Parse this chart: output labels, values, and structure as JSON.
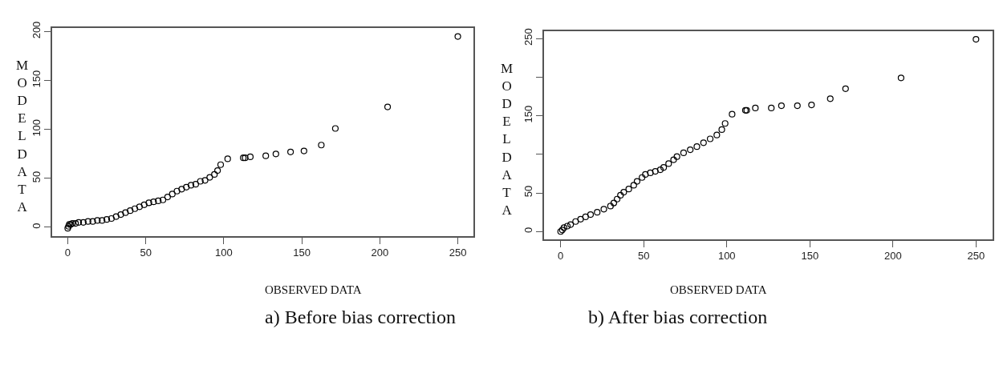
{
  "chart_data": [
    {
      "type": "scatter",
      "title": "a) Before bias correction",
      "xlabel": "OBSERVED DATA",
      "ylabel": "MODEL DATA",
      "color": "#000000",
      "marker": "circle",
      "x": [
        0,
        0.5,
        1,
        2,
        3,
        5,
        7,
        10,
        13,
        16,
        19,
        22,
        25,
        28,
        31,
        34,
        37,
        40,
        43,
        46,
        49,
        52,
        55,
        58,
        61,
        64,
        67,
        70,
        73,
        76,
        79,
        82,
        85,
        88,
        91,
        94,
        96,
        98,
        102.5,
        112.5,
        113.7,
        117,
        126.9,
        133.4,
        142.8,
        151.4,
        162.5,
        171.5,
        205,
        250
      ],
      "values": [
        -1,
        1,
        3,
        3,
        4,
        4,
        5,
        5,
        6,
        6,
        7,
        7,
        8,
        9,
        11,
        13,
        15,
        17,
        19,
        21,
        23,
        25,
        26,
        27,
        28,
        31,
        34,
        37,
        39,
        41,
        43,
        44,
        47,
        48,
        51,
        54,
        58,
        64,
        70,
        71,
        71,
        72,
        73,
        75,
        77,
        78,
        84,
        101,
        123,
        195
      ],
      "xlim": [
        -10,
        260
      ],
      "ylim": [
        -9,
        204
      ],
      "xticks": [
        0,
        50,
        100,
        150,
        200,
        250
      ],
      "yticks": [
        0,
        50,
        100,
        150,
        200
      ]
    },
    {
      "type": "scatter",
      "title": "b) After bias correction",
      "xlabel": "OBSERVED DATA",
      "ylabel": "MODEL DATA",
      "color": "#000000",
      "marker": "circle",
      "x": [
        0,
        1,
        2,
        4,
        6,
        9,
        12,
        15,
        18,
        22,
        26,
        30,
        32,
        34,
        36,
        38,
        41,
        44,
        46,
        49,
        51,
        54,
        57,
        60,
        62,
        65,
        68,
        70,
        74,
        78,
        82,
        86,
        90,
        94,
        97,
        99,
        103.2,
        111.2,
        112,
        117.2,
        126.8,
        132.9,
        142.5,
        151,
        162.3,
        171.5,
        204.9,
        250
      ],
      "values": [
        0,
        2,
        5,
        7,
        9,
        13,
        16,
        19,
        22,
        25,
        29,
        33,
        37,
        42,
        47,
        51,
        55,
        60,
        65,
        70,
        74,
        76,
        78,
        80,
        83,
        88,
        93,
        97,
        102,
        106,
        110,
        115,
        120,
        125,
        132,
        140,
        152,
        157,
        157,
        160,
        160,
        163,
        163,
        164,
        172,
        185,
        199,
        249
      ],
      "xlim": [
        -10,
        260
      ],
      "ylim": [
        -10,
        259
      ],
      "xticks": [
        0,
        50,
        100,
        150,
        200,
        250
      ],
      "yticks": [
        0,
        50,
        {
          "value": 100,
          "label": null
        },
        150,
        {
          "value": 200,
          "label": null
        },
        250
      ]
    }
  ]
}
